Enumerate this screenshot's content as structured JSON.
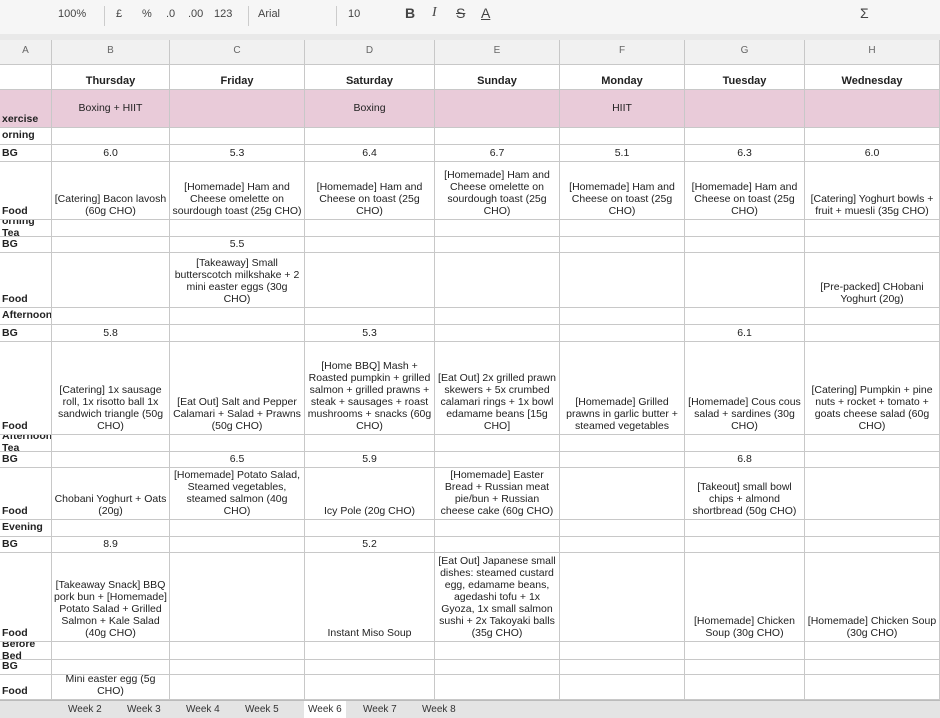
{
  "toolbar": {
    "zoom": "100%",
    "currency": "£",
    "percent": "%",
    "decimal_less": ".0",
    "decimal_more": ".00",
    "format": "123",
    "font": "Arial",
    "font_size": "10",
    "bold": "B",
    "italic": "I",
    "strike": "S",
    "text_color": "A",
    "functions": "Σ"
  },
  "columns": [
    "A",
    "B",
    "C",
    "D",
    "E",
    "F",
    "G",
    "H"
  ],
  "days": [
    "Thursday",
    "Friday",
    "Saturday",
    "Sunday",
    "Monday",
    "Tuesday",
    "Wednesday"
  ],
  "rows": [
    {
      "label": "xercise",
      "cells": [
        "Boxing + HIIT",
        null,
        "Boxing",
        null,
        "HIIT",
        null,
        null
      ]
    },
    {
      "label": "orning"
    },
    {
      "label": "BG",
      "cells": [
        "6.0",
        "5.3",
        "6.4",
        "6.7",
        "5.1",
        "6.3",
        "6.0"
      ]
    },
    {
      "label": "Food",
      "cells": [
        "[Catering] Bacon lavosh (60g CHO)",
        "[Homemade] Ham and Cheese omelette on sourdough toast (25g CHO)",
        "[Homemade] Ham and Cheese on toast (25g CHO)",
        "[Homemade] Ham and Cheese omelette on sourdough toast (25g CHO)",
        "[Homemade] Ham and Cheese on toast (25g CHO)",
        "[Homemade] Ham and Cheese on toast (25g CHO)",
        "[Catering] Yoghurt bowls + fruit + muesli (35g CHO)"
      ]
    },
    {
      "label": "orning Tea"
    },
    {
      "label": "BG",
      "cells": [
        null,
        "5.5",
        null,
        null,
        null,
        null,
        null
      ]
    },
    {
      "label": "Food",
      "cells": [
        null,
        "[Takeaway] Small butterscotch milkshake + 2 mini easter eggs (30g CHO)",
        null,
        null,
        null,
        null,
        "[Pre-packed] CHobani Yoghurt (20g)"
      ]
    },
    {
      "label": "Afternoon"
    },
    {
      "label": "BG",
      "cells": [
        "5.8",
        null,
        "5.3",
        null,
        null,
        "6.1",
        null
      ]
    },
    {
      "label": "Food",
      "cells": [
        "[Catering] 1x sausage roll, 1x risotto ball 1x sandwich triangle (50g CHO)",
        "[Eat Out] Salt and Pepper Calamari + Salad + Prawns (50g CHO)",
        "[Home BBQ] Mash + Roasted pumpkin + grilled salmon + grilled prawns + steak + sausages + roast mushrooms + snacks (60g CHO)",
        "[Eat Out] 2x grilled prawn skewers + 5x crumbed calamari rings + 1x bowl edamame beans [15g CHO]",
        "[Homemade] Grilled prawns in garlic butter + steamed vegetables",
        "[Homemade] Cous cous salad + sardines (30g CHO)",
        "[Catering] Pumpkin + pine nuts + rocket + tomato + goats cheese salad (60g CHO)"
      ]
    },
    {
      "label": "Afternoon Tea"
    },
    {
      "label": "BG",
      "cells": [
        null,
        "6.5",
        "5.9",
        null,
        null,
        "6.8",
        null
      ]
    },
    {
      "label": "Food",
      "cells": [
        "Chobani Yoghurt + Oats (20g)",
        "[Homemade] Potato Salad, Steamed vegetables, steamed salmon (40g CHO)",
        "Icy Pole (20g CHO)",
        "[Homemade] Easter Bread + Russian meat pie/bun + Russian cheese cake (60g CHO)",
        null,
        "[Takeout] small bowl chips + almond shortbread (50g CHO)",
        null
      ]
    },
    {
      "label": "Evening"
    },
    {
      "label": "BG",
      "cells": [
        "8.9",
        null,
        "5.2",
        null,
        null,
        null,
        null
      ]
    },
    {
      "label": "Food",
      "cells": [
        "[Takeaway Snack] BBQ pork bun + [Homemade] Potato Salad + Grilled Salmon + Kale Salad (40g CHO)",
        null,
        "Instant Miso Soup",
        "[Eat Out] Japanese small dishes: steamed custard egg, edamame beans, agedashi tofu + 1x Gyoza, 1x small salmon sushi + 2x Takoyaki balls (35g CHO)",
        null,
        "[Homemade] Chicken Soup (30g CHO)",
        "[Homemade] Chicken Soup (30g CHO)"
      ]
    },
    {
      "label": "Before Bed"
    },
    {
      "label": "BG"
    },
    {
      "label": "Food",
      "cells": [
        "Mini easter egg (5g CHO)",
        null,
        null,
        null,
        null,
        null,
        null
      ]
    }
  ],
  "tabs": [
    "Week 2",
    "Week 3",
    "Week 4",
    "Week 5",
    "Week 6",
    "Week 7",
    "Week 8"
  ]
}
